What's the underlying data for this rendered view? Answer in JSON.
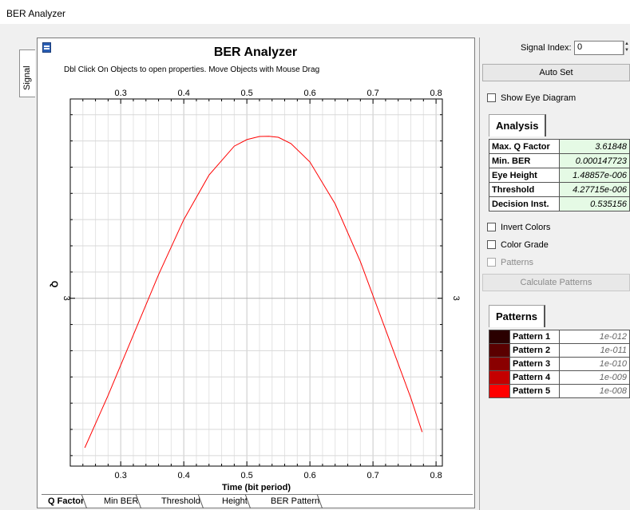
{
  "window": {
    "title": "BER Analyzer"
  },
  "side_tab": {
    "label": "Signal"
  },
  "graph": {
    "title": "BER Analyzer",
    "subtitle": "Dbl Click On Objects to open properties.  Move Objects with Mouse Drag",
    "xlabel": "Time (bit period)",
    "ylabel": "Q",
    "x_ticks": [
      "0.3",
      "0.4",
      "0.5",
      "0.6",
      "0.7",
      "0.8"
    ],
    "y_tick_label": "3"
  },
  "chart_data": {
    "type": "line",
    "title": "BER Analyzer",
    "xlabel": "Time (bit period)",
    "ylabel": "Q",
    "xlim": [
      0.22,
      0.81
    ],
    "ylim": [
      2.36,
      3.76
    ],
    "grid": true,
    "series": [
      {
        "color": "#ff0000",
        "x": [
          0.243,
          0.28,
          0.32,
          0.36,
          0.4,
          0.44,
          0.48,
          0.5,
          0.52,
          0.535,
          0.55,
          0.57,
          0.6,
          0.64,
          0.68,
          0.72,
          0.76,
          0.778
        ],
        "y": [
          2.43,
          2.63,
          2.86,
          3.09,
          3.3,
          3.47,
          3.58,
          3.605,
          3.617,
          3.618,
          3.614,
          3.59,
          3.52,
          3.36,
          3.14,
          2.88,
          2.62,
          2.49
        ]
      }
    ]
  },
  "bottom_tabs": [
    "Q Factor",
    "Min BER",
    "Threshold",
    "Height",
    "BER Pattern"
  ],
  "right_panel": {
    "signal_index_label": "Signal Index:",
    "signal_index_value": "0",
    "auto_set_label": "Auto Set",
    "show_eye_label": "Show Eye Diagram",
    "analysis_tab": "Analysis",
    "metrics": [
      {
        "key": "Max. Q Factor",
        "value": "3.61848"
      },
      {
        "key": "Min. BER",
        "value": "0.000147723"
      },
      {
        "key": "Eye Height",
        "value": "1.48857e-006"
      },
      {
        "key": "Threshold",
        "value": "4.27715e-006"
      },
      {
        "key": "Decision Inst.",
        "value": "0.535156"
      }
    ],
    "invert_colors_label": "Invert Colors",
    "color_grade_label": "Color Grade",
    "patterns_check_label": "Patterns",
    "calculate_patterns_label": "Calculate Patterns",
    "patterns_tab": "Patterns",
    "patterns": [
      {
        "key": "Pattern 1",
        "value": "1e-012",
        "color": "#2a0000"
      },
      {
        "key": "Pattern 2",
        "value": "1e-011",
        "color": "#5a0000"
      },
      {
        "key": "Pattern 3",
        "value": "1e-010",
        "color": "#8a0000"
      },
      {
        "key": "Pattern 4",
        "value": "1e-009",
        "color": "#c40000"
      },
      {
        "key": "Pattern 5",
        "value": "1e-008",
        "color": "#ff0000"
      }
    ]
  }
}
